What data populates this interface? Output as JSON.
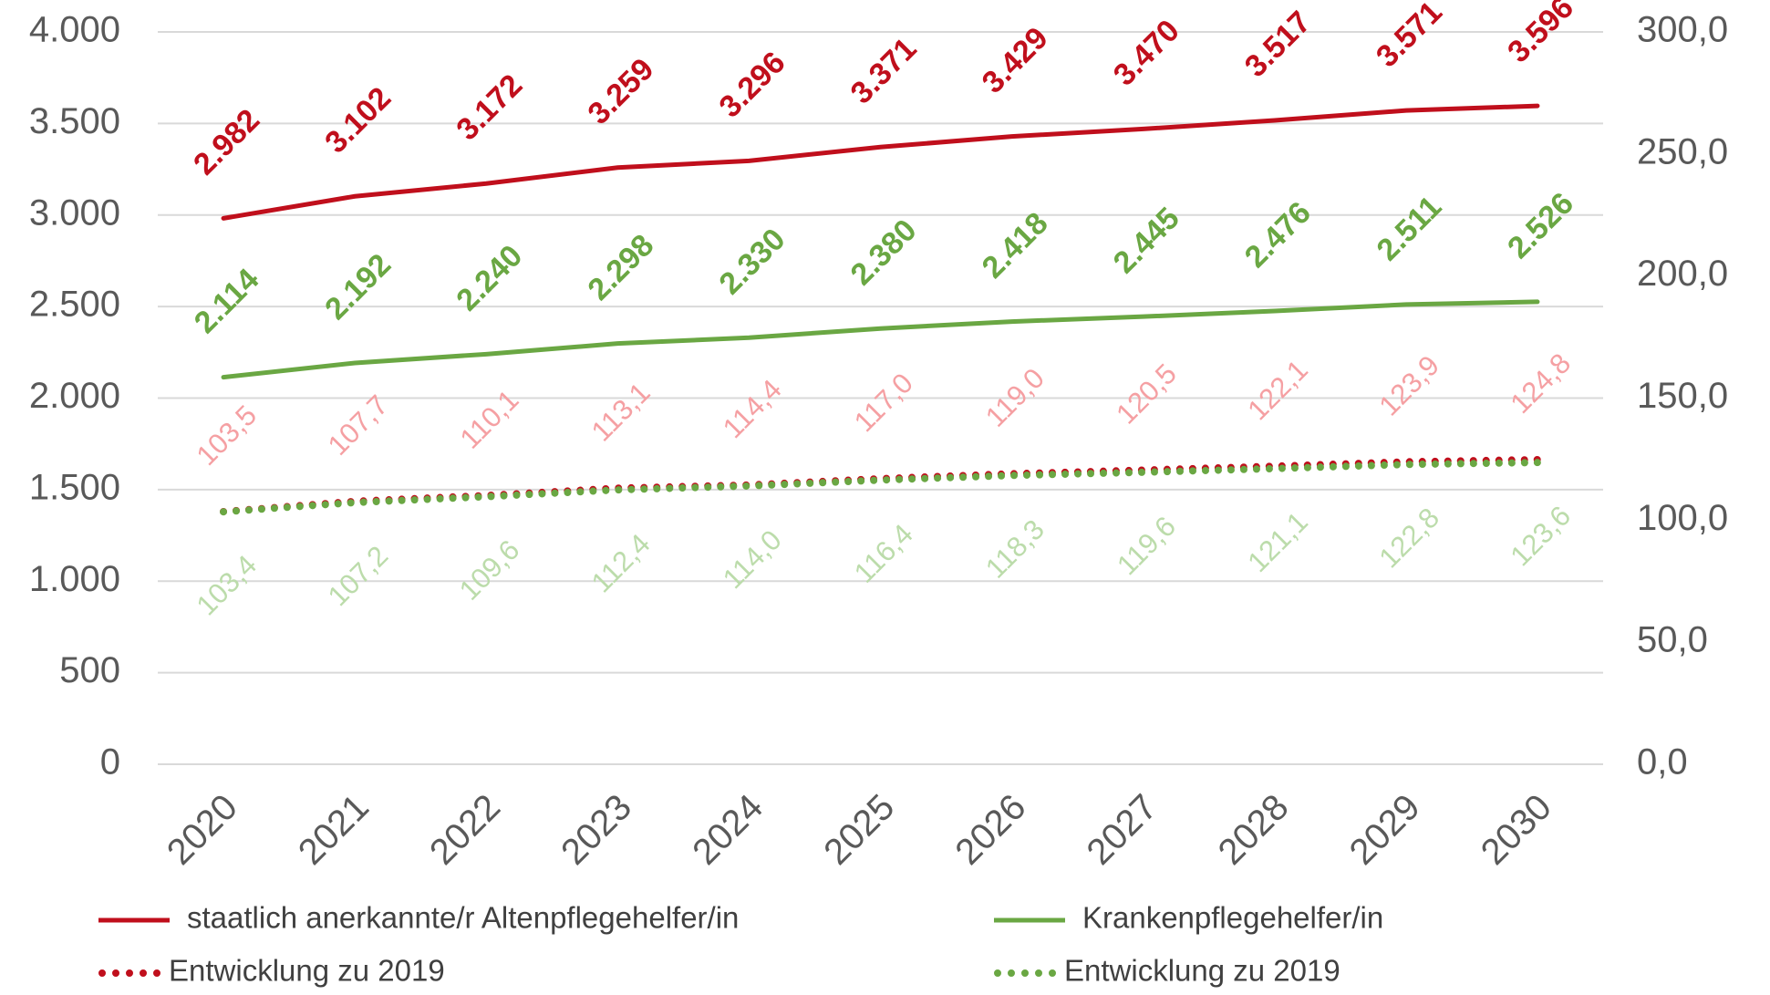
{
  "chart_data": {
    "type": "line",
    "categories": [
      "2020",
      "2021",
      "2022",
      "2023",
      "2024",
      "2025",
      "2026",
      "2027",
      "2028",
      "2029",
      "2030"
    ],
    "series": [
      {
        "name": "staatlich anerkannte/r Altenpflegehelfer/in",
        "color": "#c00f1c",
        "label_color": "#c00f1c",
        "line_style": "solid",
        "label_position": "above",
        "values": [
          2982,
          3102,
          3172,
          3259,
          3296,
          3371,
          3429,
          3470,
          3517,
          3571,
          3596
        ],
        "value_labels": [
          "2.982",
          "3.102",
          "3.172",
          "3.259",
          "3.296",
          "3.371",
          "3.429",
          "3.470",
          "3.517",
          "3.571",
          "3.596"
        ]
      },
      {
        "name": "Krankenpflegehelfer/in",
        "color": "#6aa743",
        "label_color": "#6aa743",
        "line_style": "solid",
        "label_position": "above",
        "values": [
          2114,
          2192,
          2240,
          2298,
          2330,
          2380,
          2418,
          2445,
          2476,
          2511,
          2526
        ],
        "value_labels": [
          "2.114",
          "2.192",
          "2.240",
          "2.298",
          "2.330",
          "2.380",
          "2.418",
          "2.445",
          "2.476",
          "2.511",
          "2.526"
        ]
      },
      {
        "name": "Entwicklung zu 2019",
        "color": "#c00f1c",
        "label_color": "#f5a0a3",
        "line_style": "dotted",
        "label_position": "above",
        "axis": "y2",
        "values": [
          103.5,
          107.7,
          110.1,
          113.1,
          114.4,
          117.0,
          119.0,
          120.5,
          122.1,
          123.9,
          124.8
        ],
        "value_labels": [
          "103,5",
          "107,7",
          "110,1",
          "113,1",
          "114,4",
          "117,0",
          "119,0",
          "120,5",
          "122,1",
          "123,9",
          "124,8"
        ]
      },
      {
        "name": "Entwicklung zu 2019",
        "color": "#6aa743",
        "label_color": "#bcdcab",
        "line_style": "dotted",
        "label_position": "below",
        "axis": "y2",
        "values": [
          103.4,
          107.2,
          109.6,
          112.4,
          114.0,
          116.4,
          118.3,
          119.6,
          121.1,
          122.8,
          123.6
        ],
        "value_labels": [
          "103,4",
          "107,2",
          "109,6",
          "112,4",
          "114,0",
          "116,4",
          "118,3",
          "119,6",
          "121,1",
          "122,8",
          "123,6"
        ]
      }
    ],
    "ylim": [
      0,
      4000
    ],
    "yticks": [
      0,
      500,
      {
        "value": 1000,
        "label": "1.000"
      },
      {
        "value": 1500,
        "label": "1.500"
      },
      {
        "value": 2000,
        "label": "2.000"
      },
      {
        "value": 2500,
        "label": "2.500"
      },
      {
        "value": 3000,
        "label": "3.000"
      },
      {
        "value": 3500,
        "label": "3.500"
      },
      {
        "value": 4000,
        "label": "4.000"
      }
    ],
    "y2lim": [
      0,
      300
    ],
    "y2ticks": [
      {
        "value": 0,
        "label": "0,0"
      },
      {
        "value": 50,
        "label": "50,0"
      },
      {
        "value": 100,
        "label": "100,0"
      },
      {
        "value": 150,
        "label": "150,0"
      },
      {
        "value": 200,
        "label": "200,0"
      },
      {
        "value": 250,
        "label": "250,0"
      },
      {
        "value": 300,
        "label": "300,0"
      }
    ],
    "grid": true
  }
}
